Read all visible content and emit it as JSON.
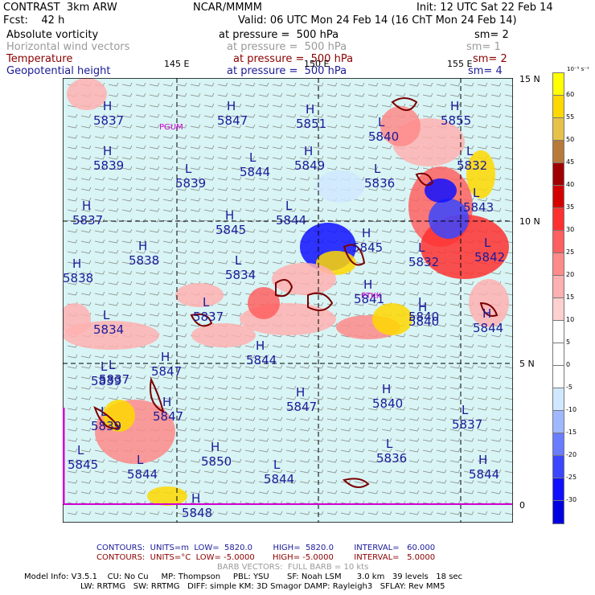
{
  "header": {
    "model": "CONTRAST  3km ARW",
    "org": "NCAR/MMMM",
    "init": "Init: 12 UTC Sat 22 Feb 14",
    "fcst": "Fcst:    42 h",
    "valid": "Valid: 06 UTC Mon 24 Feb 14 (16 ChT Mon 24 Feb 14)"
  },
  "fields": [
    {
      "name": "Absolute vorticity",
      "level": "at pressure =  500 hPa",
      "sm": "sm= 2",
      "color": "#000000"
    },
    {
      "name": "Horizontal wind vectors",
      "level": "at pressure =  500 hPa",
      "sm": "sm= 1",
      "color": "#9a9a9a"
    },
    {
      "name": "Temperature",
      "level": "at pressure =  500 hPa",
      "sm": "sm= 2",
      "color": "#8b0000"
    },
    {
      "name": "Geopotential height",
      "level": "at pressure =  500 hPa",
      "sm": "sm= 4",
      "color": "#1a1a9a"
    }
  ],
  "axes": {
    "lon_labels": [
      "145 E",
      "150 E",
      "155 E"
    ],
    "lat_labels": [
      "15 N",
      "10 N",
      "5 N",
      "0"
    ]
  },
  "stations": [
    {
      "label": "PGUM"
    },
    {
      "label": "PTKK"
    }
  ],
  "height_labels": [
    {
      "hl": "H",
      "v": "5837"
    },
    {
      "hl": "H",
      "v": "5847"
    },
    {
      "hl": "H",
      "v": "5851"
    },
    {
      "hl": "L",
      "v": "5840"
    },
    {
      "hl": "H",
      "v": "5855"
    },
    {
      "hl": "H",
      "v": "5839"
    },
    {
      "hl": "L",
      "v": "5844"
    },
    {
      "hl": "H",
      "v": "5849"
    },
    {
      "hl": "L",
      "v": "5836"
    },
    {
      "hl": "L",
      "v": "5832"
    },
    {
      "hl": "L",
      "v": "5839"
    },
    {
      "hl": "H",
      "v": "5837"
    },
    {
      "hl": "L",
      "v": "5844"
    },
    {
      "hl": "H",
      "v": "5845"
    },
    {
      "hl": "L",
      "v": "5843"
    },
    {
      "hl": "H",
      "v": "5838"
    },
    {
      "hl": "H",
      "v": "5845"
    },
    {
      "hl": "L",
      "v": "5832"
    },
    {
      "hl": "L",
      "v": "5842"
    },
    {
      "hl": "H",
      "v": "5838"
    },
    {
      "hl": "L",
      "v": "5834"
    },
    {
      "hl": "H",
      "v": "5841"
    },
    {
      "hl": "L",
      "v": "5834"
    },
    {
      "hl": "L",
      "v": "5837"
    },
    {
      "hl": "L",
      "v": "5840"
    },
    {
      "hl": "H",
      "v": "5840"
    },
    {
      "hl": "H",
      "v": "5844"
    },
    {
      "hl": "H",
      "v": "5844"
    },
    {
      "hl": "L",
      "v": "5837"
    },
    {
      "hl": "L",
      "v": "5839"
    },
    {
      "hl": "H",
      "v": "5847"
    },
    {
      "hl": "L",
      "v": "5839"
    },
    {
      "hl": "H",
      "v": "5847"
    },
    {
      "hl": "H",
      "v": "5840"
    },
    {
      "hl": "L",
      "v": "5837"
    },
    {
      "hl": "H",
      "v": "5847"
    },
    {
      "hl": "H",
      "v": "5850"
    },
    {
      "hl": "L",
      "v": "5836"
    },
    {
      "hl": "L",
      "v": "5845"
    },
    {
      "hl": "L",
      "v": "5844"
    },
    {
      "hl": "L",
      "v": "5844"
    },
    {
      "hl": "H",
      "v": "5844"
    },
    {
      "hl": "H",
      "v": "5848"
    }
  ],
  "legend": {
    "unit": "10⁻⁵ s⁻¹",
    "levels": [
      "60",
      "55",
      "50",
      "45",
      "40",
      "35",
      "30",
      "25",
      "20",
      "15",
      "10",
      "5",
      "0",
      "-5",
      "-10",
      "-15",
      "-20",
      "-25",
      "-30"
    ],
    "colors": [
      "#ffff00",
      "#ffd800",
      "#e6c24a",
      "#b87a3a",
      "#a00000",
      "#d40000",
      "#ff3030",
      "#ff6060",
      "#ff8a8a",
      "#ffb0b0",
      "#ffd0d0",
      "#ffffff",
      "#ffffff",
      "#ffffff",
      "#d0e8ff",
      "#a0b8ff",
      "#6a7cff",
      "#3a46ff",
      "#1010ff",
      "#0000e0"
    ]
  },
  "footer": {
    "line1": "CONTOURS:  UNITS=m  LOW=  5820.0        HIGH=  5820.0        INTERVAL=   60.000",
    "line2": "CONTOURS:  UNITS=°C  LOW= -5.0000       HIGH= -5.0000        INTERVAL=   5.0000",
    "line3": "BARB VECTORS:  FULL BARB = 10 kts",
    "line4": "Model Info: V3.5.1    CU: No Cu     MP: Thompson     PBL: YSU       SF: Noah LSM      3.0 km   39 levels   18 sec",
    "line5": "LW: RRTMG   SW: RRTMG   DIFF: simple KM: 3D Smagor DAMP: Rayleigh3   SFLAY: Rev MM5"
  }
}
